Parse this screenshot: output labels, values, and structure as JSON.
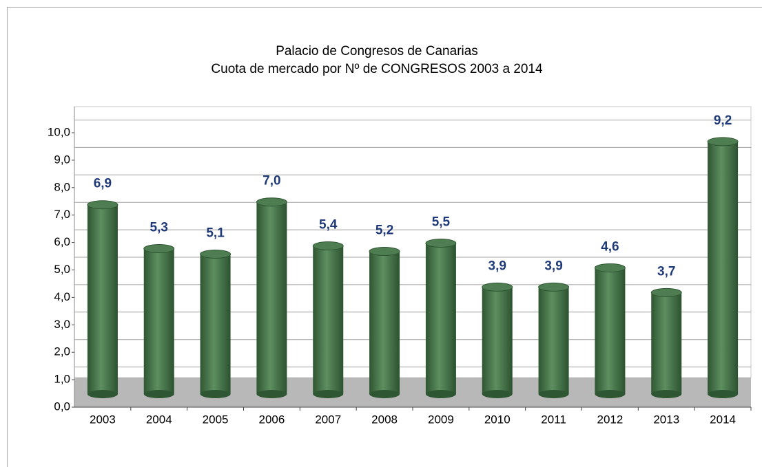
{
  "chart_data": {
    "type": "bar",
    "title": "Palacio de Congresos de Canarias",
    "subtitle": "Cuota de mercado por Nº de CONGRESOS 2003 a 2014",
    "categories": [
      "2003",
      "2004",
      "2005",
      "2006",
      "2007",
      "2008",
      "2009",
      "2010",
      "2011",
      "2012",
      "2013",
      "2014"
    ],
    "values": [
      6.9,
      5.3,
      5.1,
      7.0,
      5.4,
      5.2,
      5.5,
      3.9,
      3.9,
      4.6,
      3.7,
      9.2
    ],
    "value_labels": [
      "6,9",
      "5,3",
      "5,1",
      "7,0",
      "5,4",
      "5,2",
      "5,5",
      "3,9",
      "3,9",
      "4,6",
      "3,7",
      "9,2"
    ],
    "color": "#3f6e42",
    "ylim": [
      0,
      10
    ],
    "yticks": [
      {
        "value": 0,
        "label": "0,0"
      },
      {
        "value": 1,
        "label": "1,0"
      },
      {
        "value": 2,
        "label": "2,0"
      },
      {
        "value": 3,
        "label": "3,0"
      },
      {
        "value": 4,
        "label": "4,0"
      },
      {
        "value": 5,
        "label": "5,0"
      },
      {
        "value": 6,
        "label": "6,0"
      },
      {
        "value": 7,
        "label": "7,0"
      },
      {
        "value": 8,
        "label": "8,0"
      },
      {
        "value": 9,
        "label": "9,0"
      },
      {
        "value": 10,
        "label": "10,0"
      }
    ],
    "grid": true
  }
}
